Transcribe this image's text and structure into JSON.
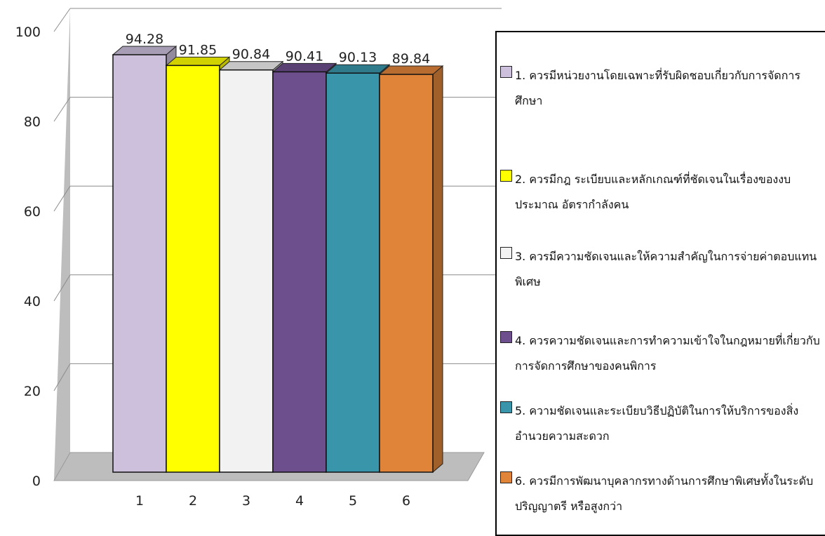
{
  "chart_data": {
    "type": "bar",
    "categories": [
      "1",
      "2",
      "3",
      "4",
      "5",
      "6"
    ],
    "values": [
      94.28,
      91.85,
      90.84,
      90.41,
      90.13,
      89.84
    ],
    "data_labels": [
      "94.28",
      "91.85",
      "90.84",
      "90.41",
      "90.13",
      "89.84"
    ],
    "colors": [
      "#ccc0dc",
      "#ffff00",
      "#f2f2f2",
      "#6e4f8e",
      "#3996aa",
      "#e0843a"
    ],
    "ylim": [
      0,
      100
    ],
    "yticks": [
      "0",
      "20",
      "40",
      "60",
      "80",
      "100"
    ],
    "grid": true,
    "three_d": true,
    "legend_position": "right",
    "legend": [
      "1. ควรมีหน่วยงานโดยเฉพาะที่รับผิดชอบเกี่ยวกับการจัดการศึกษา",
      "2. ควรมีกฎ ระเบียบและหลักเกณฑ์ที่ชัดเจนในเรื่องของงบประมาณ อัตรากำลังคน",
      "3. ควรมีความชัดเจนและให้ความสำคัญในการจ่ายค่าตอบแทนพิเศษ",
      "4. ควรความชัดเจนและการทำความเข้าใจในกฎหมายที่เกี่ยวกับการจัดการศึกษาของคนพิการ",
      "5. ความชัดเจนและระเบียบวิธีปฏิบัติในการให้บริการของสิ่งอำนวยความสะดวก",
      "6. ควรมีการพัฒนาบุคลากรทางด้านการศึกษาพิเศษทั้งในระดับปริญญาตรี หรือสูงกว่า"
    ]
  }
}
